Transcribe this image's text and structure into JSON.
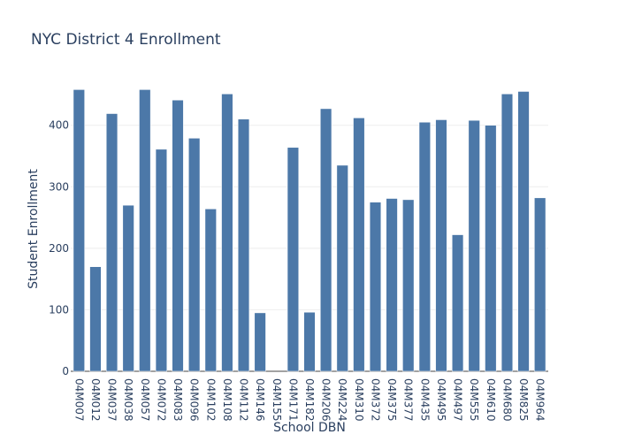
{
  "chart_data": {
    "type": "bar",
    "title": "NYC District 4 Enrollment",
    "xlabel": "School DBN",
    "ylabel": "Student Enrollment",
    "categories": [
      "04M007",
      "04M012",
      "04M037",
      "04M038",
      "04M057",
      "04M072",
      "04M083",
      "04M096",
      "04M102",
      "04M108",
      "04M112",
      "04M146",
      "04M155",
      "04M171",
      "04M182",
      "04M206",
      "04M224",
      "04M310",
      "04M372",
      "04M375",
      "04M377",
      "04M435",
      "04M495",
      "04M497",
      "04M555",
      "04M610",
      "04M680",
      "04M825",
      "04M964"
    ],
    "values": [
      458,
      170,
      419,
      270,
      458,
      361,
      441,
      379,
      264,
      451,
      410,
      95,
      0,
      364,
      96,
      427,
      335,
      412,
      275,
      281,
      279,
      405,
      409,
      222,
      408,
      400,
      451,
      455,
      282
    ],
    "ylim": [
      0,
      460
    ],
    "yticks": [
      0,
      100,
      200,
      300,
      400
    ],
    "grid": true,
    "bar_color": "#4c78a8"
  }
}
